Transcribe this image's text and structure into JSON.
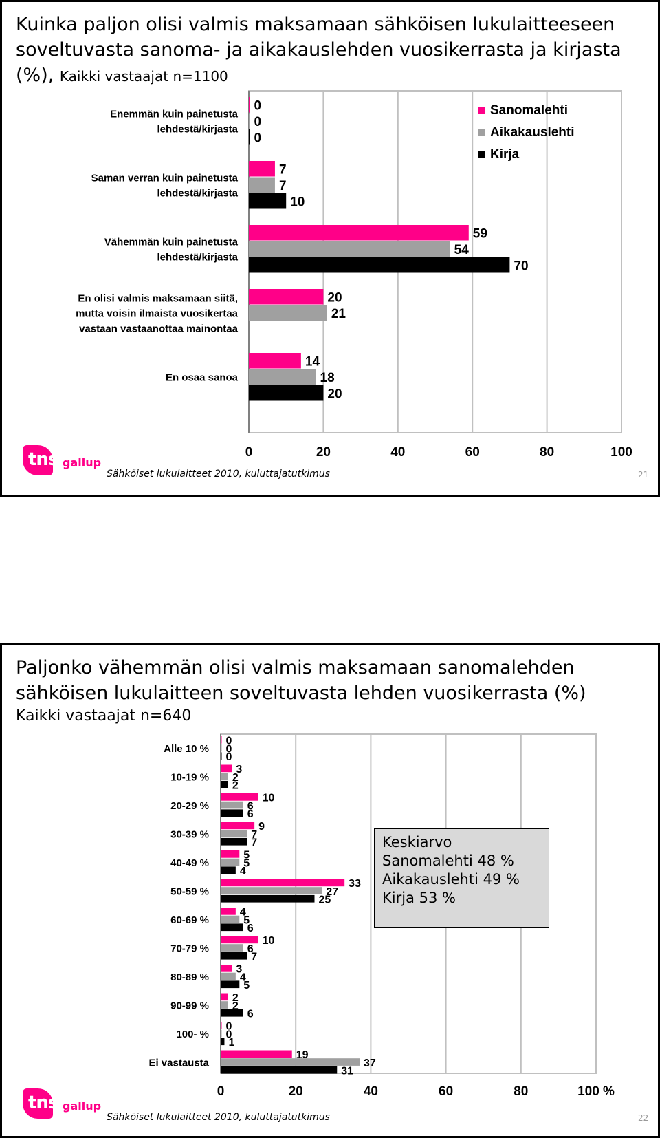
{
  "slide1": {
    "title": "Kuinka paljon olisi valmis maksamaan sähköisen lukulaitteeseen soveltuvasta sanoma- ja aikakauslehden vuosikerrasta ja kirjasta (%),",
    "subtitle": "Kaikki vastaajat n=1100",
    "footer": "Sähköiset lukulaitteet 2010, kuluttajatutkimus",
    "page_number": "21",
    "logo": {
      "text": "tns",
      "suffix": "gallup"
    }
  },
  "slide2": {
    "title": "Paljonko vähemmän olisi valmis maksamaan sanomalehden sähköisen lukulaitteen soveltuvasta lehden vuosikerrasta (%)",
    "subtitle": "Kaikki vastaajat n=640",
    "footer": "Sähköiset lukulaitteet 2010, kuluttajatutkimus",
    "page_number": "22",
    "logo": {
      "text": "tns",
      "suffix": "gallup"
    },
    "stat_box": {
      "heading": "Keskiarvo",
      "lines": [
        "Sanomalehti 48 %",
        "Aikakauslehti 49 %",
        "Kirja 53 %"
      ]
    }
  },
  "colors": {
    "sanomalehti": "#ff0088",
    "aikakauslehti": "#a0a0a0",
    "kirja": "#000000"
  },
  "chart_data": [
    {
      "type": "bar",
      "orientation": "horizontal",
      "categories": [
        [
          "Enemmän kuin painetusta",
          "lehdestä/kirjasta"
        ],
        [
          "Saman verran kuin painetusta",
          "lehdestä/kirjasta"
        ],
        [
          "Vähemmän kuin painetusta",
          "lehdestä/kirjasta"
        ],
        [
          "En olisi valmis maksamaan siitä,",
          "mutta voisin ilmaista vuosikertaa",
          "vastaan vastaanottaa mainontaa"
        ],
        [
          "En osaa sanoa"
        ]
      ],
      "series": [
        {
          "name": "Sanomalehti",
          "values": [
            0,
            7,
            59,
            20,
            14
          ]
        },
        {
          "name": "Aikakauslehti",
          "values": [
            0,
            7,
            54,
            21,
            18
          ]
        },
        {
          "name": "Kirja",
          "values": [
            0,
            10,
            70,
            null,
            20
          ]
        }
      ],
      "xlim": [
        0,
        100
      ],
      "xticks": [
        "0",
        "20",
        "40",
        "60",
        "80",
        "100"
      ],
      "grid": true,
      "legend": "top-right"
    },
    {
      "type": "bar",
      "orientation": "horizontal",
      "categories": [
        [
          "Alle 10 %"
        ],
        [
          "10-19 %"
        ],
        [
          "20-29 %"
        ],
        [
          "30-39 %"
        ],
        [
          "40-49 %"
        ],
        [
          "50-59 %"
        ],
        [
          "60-69 %"
        ],
        [
          "70-79 %"
        ],
        [
          "80-89 %"
        ],
        [
          "90-99 %"
        ],
        [
          "100- %"
        ],
        [
          "Ei vastausta"
        ]
      ],
      "series": [
        {
          "name": "Sanomalehti",
          "values": [
            0,
            3,
            10,
            9,
            5,
            33,
            4,
            10,
            3,
            2,
            0,
            19
          ]
        },
        {
          "name": "Aikakauslehti",
          "values": [
            0,
            2,
            6,
            7,
            5,
            27,
            5,
            6,
            4,
            2,
            0,
            37
          ]
        },
        {
          "name": "Kirja",
          "values": [
            0,
            2,
            6,
            7,
            4,
            25,
            6,
            7,
            5,
            6,
            1,
            31
          ]
        }
      ],
      "xlim": [
        0,
        100
      ],
      "xticks": [
        "0",
        "20",
        "40",
        "60",
        "80",
        "100 %"
      ],
      "grid": true,
      "legend": "none"
    }
  ]
}
